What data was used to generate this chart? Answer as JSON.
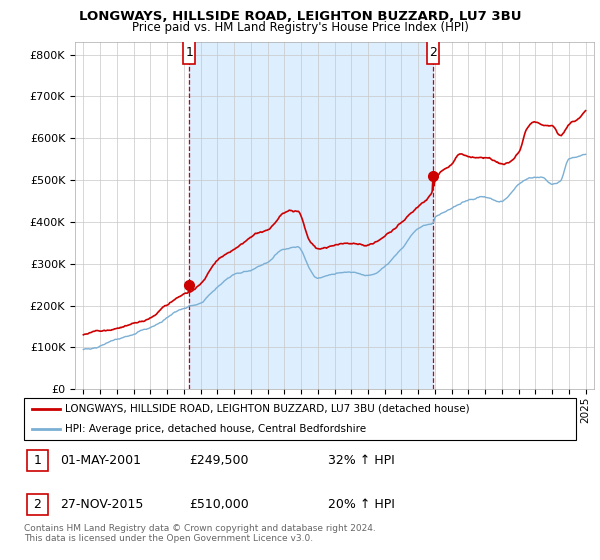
{
  "title": "LONGWAYS, HILLSIDE ROAD, LEIGHTON BUZZARD, LU7 3BU",
  "subtitle": "Price paid vs. HM Land Registry's House Price Index (HPI)",
  "legend_line1": "LONGWAYS, HILLSIDE ROAD, LEIGHTON BUZZARD, LU7 3BU (detached house)",
  "legend_line2": "HPI: Average price, detached house, Central Bedfordshire",
  "footnote": "Contains HM Land Registry data © Crown copyright and database right 2024.\nThis data is licensed under the Open Government Licence v3.0.",
  "sale1_date": "01-MAY-2001",
  "sale1_price": "£249,500",
  "sale1_hpi": "32% ↑ HPI",
  "sale2_date": "27-NOV-2015",
  "sale2_price": "£510,000",
  "sale2_hpi": "20% ↑ HPI",
  "sale1_x": 2001.33,
  "sale1_y": 249500,
  "sale2_x": 2015.9,
  "sale2_y": 510000,
  "red_color": "#cc0000",
  "blue_color": "#7bafd4",
  "shade_color": "#ddeeff",
  "ylim": [
    0,
    830000
  ],
  "xlim_start": 1994.5,
  "xlim_end": 2025.5,
  "yticks": [
    0,
    100000,
    200000,
    300000,
    400000,
    500000,
    600000,
    700000,
    800000
  ],
  "ytick_labels": [
    "£0",
    "£100K",
    "£200K",
    "£300K",
    "£400K",
    "£500K",
    "£600K",
    "£700K",
    "£800K"
  ],
  "xticks": [
    1995,
    1996,
    1997,
    1998,
    1999,
    2000,
    2001,
    2002,
    2003,
    2004,
    2005,
    2006,
    2007,
    2008,
    2009,
    2010,
    2011,
    2012,
    2013,
    2014,
    2015,
    2016,
    2017,
    2018,
    2019,
    2020,
    2021,
    2022,
    2023,
    2024,
    2025
  ]
}
